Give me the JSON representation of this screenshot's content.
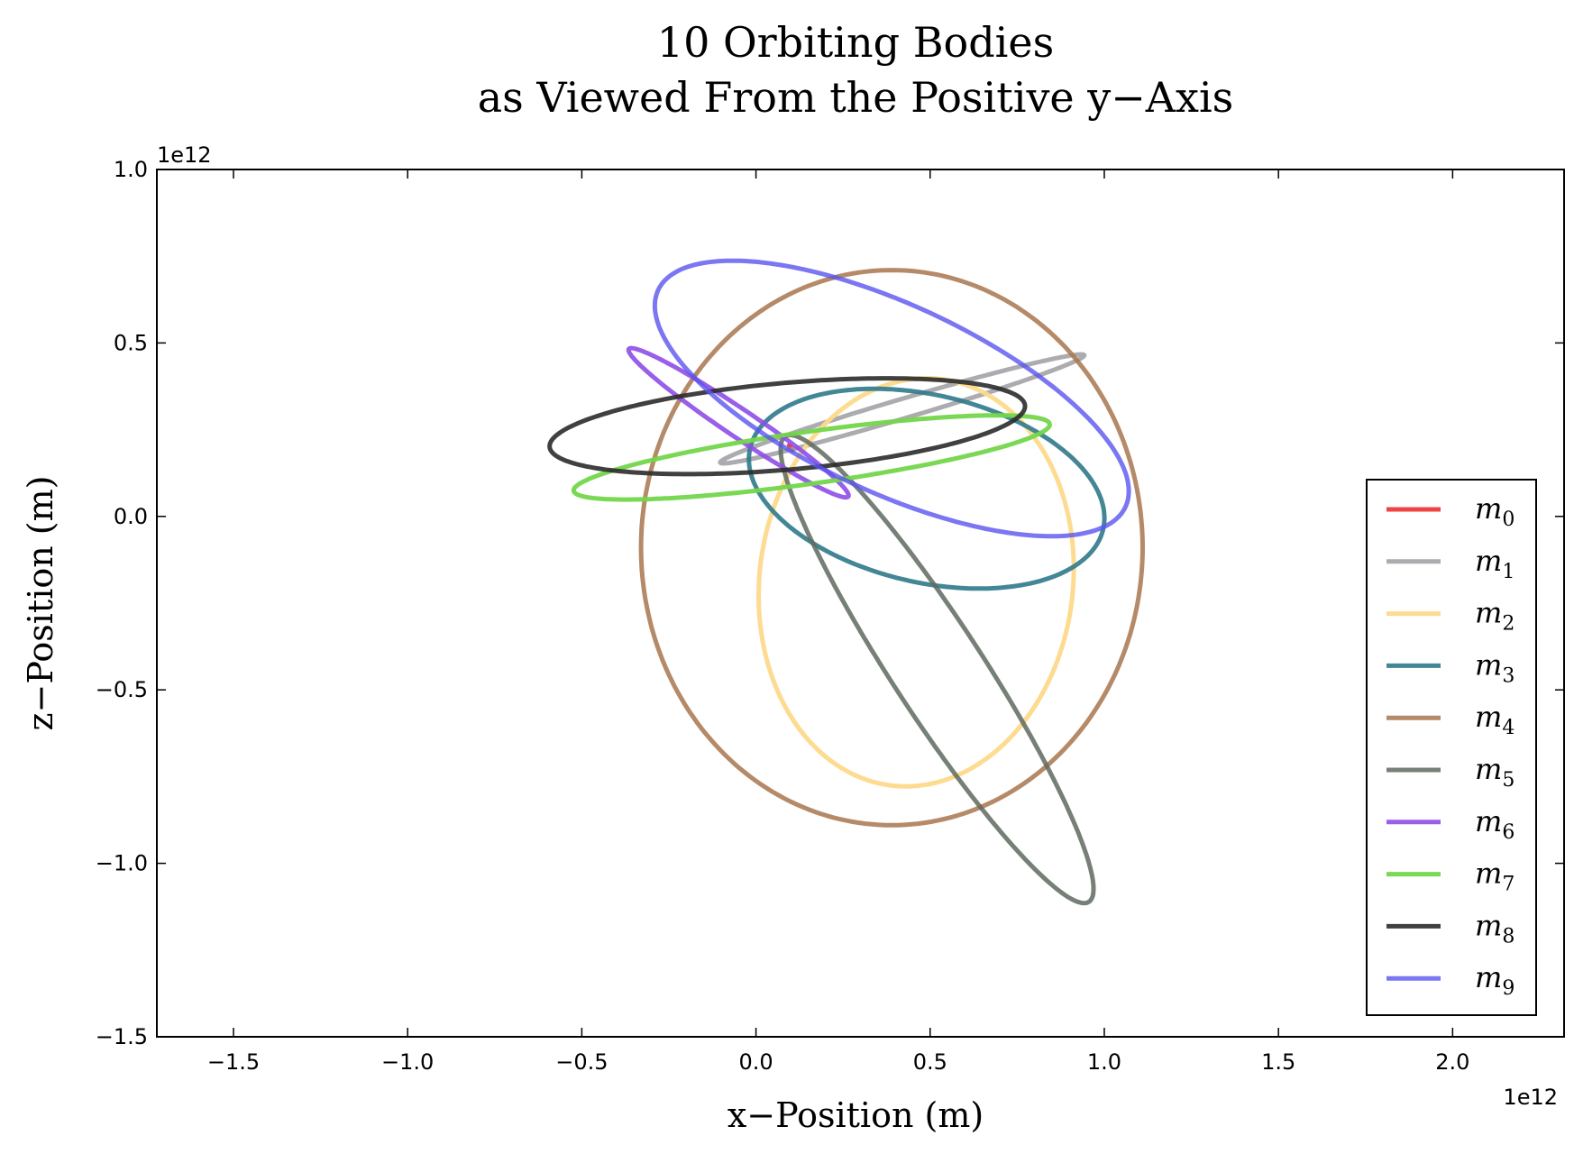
{
  "chart_data": {
    "type": "line",
    "title": "10 Orbiting Bodies",
    "subtitle": "as Viewed From the Positive y−Axis",
    "xlabel": "x−Position (m)",
    "ylabel": "z−Position (m)",
    "x_offset_label": "1e12",
    "y_offset_label": "1e12",
    "xlim": [
      -1.72,
      2.32
    ],
    "ylim": [
      -1.5,
      1.0
    ],
    "xticks": [
      -1.5,
      -1.0,
      -0.5,
      0.0,
      0.5,
      1.0,
      1.5,
      2.0
    ],
    "xtick_labels": [
      "−1.5",
      "−1.0",
      "−0.5",
      "0.0",
      "0.5",
      "1.0",
      "1.5",
      "2.0"
    ],
    "yticks": [
      1.0,
      0.5,
      0.0,
      -0.5,
      -1.0,
      -1.5
    ],
    "ytick_labels": [
      "1.0",
      "0.5",
      "0.0",
      "−0.5",
      "−1.0",
      "−1.5"
    ],
    "grid": false,
    "legend_position": "lower-right",
    "series": [
      {
        "name": "m",
        "sub": "0",
        "color": "#ef4444",
        "opacity": 1.0,
        "points": [
          [
            0.095,
            0.205
          ],
          [
            0.105,
            0.19
          ]
        ]
      },
      {
        "name": "m",
        "sub": "1",
        "color": "#9e9ea2",
        "opacity": 0.85,
        "ellipse": {
          "cx": 0.42,
          "cy": 0.31,
          "a": 0.545,
          "b": 0.028,
          "rot": 16.5
        }
      },
      {
        "name": "m",
        "sub": "2",
        "color": "#fdd98a",
        "opacity": 0.95,
        "ellipse": {
          "cx": 0.46,
          "cy": -0.19,
          "a": 0.59,
          "b": 0.45,
          "rot": -97
        }
      },
      {
        "name": "m",
        "sub": "3",
        "color": "#2f7a8c",
        "opacity": 0.9,
        "ellipse": {
          "cx": 0.49,
          "cy": 0.08,
          "a": 0.52,
          "b": 0.27,
          "rot": -13
        }
      },
      {
        "name": "m",
        "sub": "4",
        "color": "#a8764f",
        "opacity": 0.85,
        "ellipse": {
          "cx": 0.39,
          "cy": -0.09,
          "a": 0.8,
          "b": 0.72,
          "rot": -90
        }
      },
      {
        "name": "m",
        "sub": "5",
        "color": "#5f6a5e",
        "opacity": 0.85,
        "ellipse": {
          "cx": 0.52,
          "cy": -0.44,
          "a": 0.8,
          "b": 0.13,
          "rot": -57
        }
      },
      {
        "name": "m",
        "sub": "6",
        "color": "#8e4ee6",
        "opacity": 0.9,
        "ellipse": {
          "cx": -0.05,
          "cy": 0.27,
          "a": 0.38,
          "b": 0.04,
          "rot": -34
        }
      },
      {
        "name": "m",
        "sub": "7",
        "color": "#73d64b",
        "opacity": 0.95,
        "ellipse": {
          "cx": 0.16,
          "cy": 0.17,
          "a": 0.69,
          "b": 0.075,
          "rot": 8
        }
      },
      {
        "name": "m",
        "sub": "8",
        "color": "#2b2b2b",
        "opacity": 0.9,
        "ellipse": {
          "cx": 0.09,
          "cy": 0.26,
          "a": 0.685,
          "b": 0.125,
          "rot": 5
        }
      },
      {
        "name": "m",
        "sub": "9",
        "color": "#5a54ee",
        "opacity": 0.8,
        "ellipse": {
          "cx": 0.39,
          "cy": 0.34,
          "a": 0.74,
          "b": 0.27,
          "rot": -25
        }
      }
    ]
  }
}
